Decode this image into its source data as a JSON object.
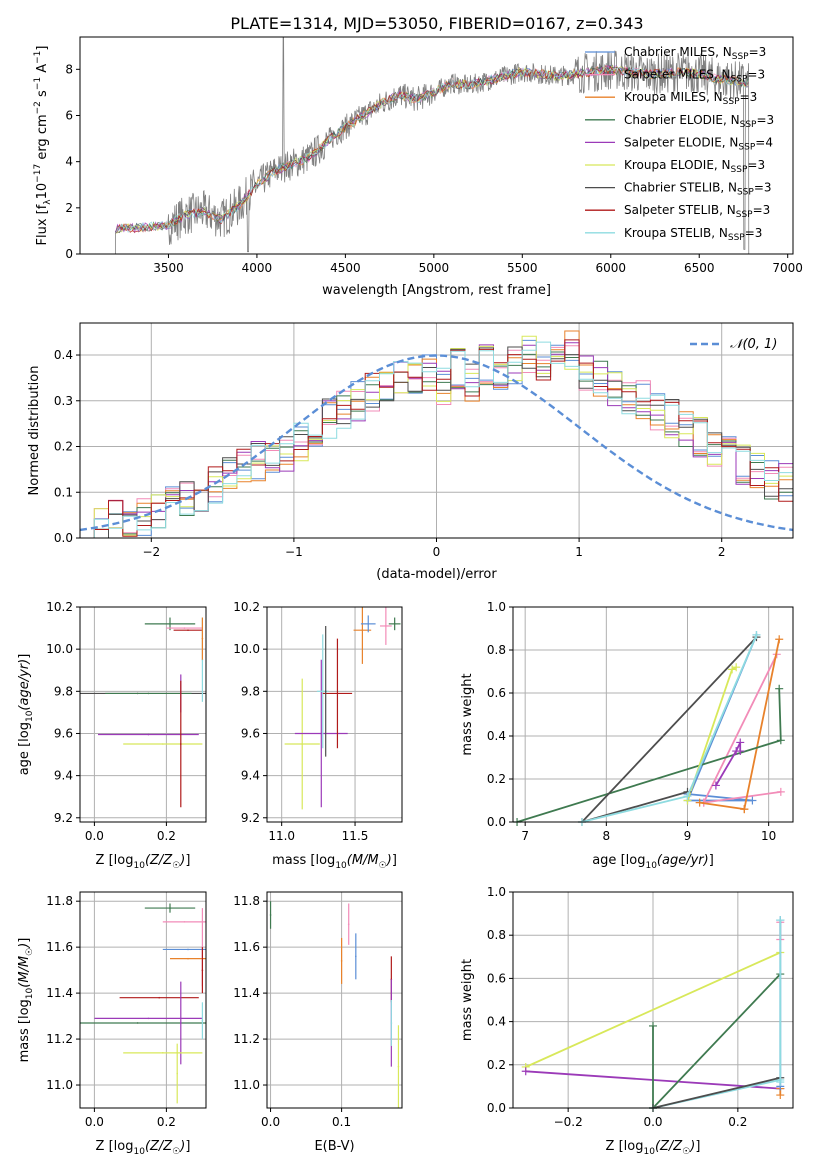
{
  "figure_title": "PLATE=1314, MJD=53050, FIBERID=0167, z=0.343",
  "palette": {
    "chabrier_miles": "#5b8ed6",
    "salpeter_miles": "#f28cb8",
    "kroupa_miles": "#e8822b",
    "chabrier_elodie": "#3f7a50",
    "salpeter_elodie": "#9b3ab8",
    "kroupa_elodie": "#d8e85a",
    "chabrier_stelib": "#4d4d4d",
    "salpeter_stelib": "#b01a1a",
    "kroupa_stelib": "#8edbe0",
    "spectrum": "#808080",
    "gaussian": "#5b8ed6",
    "grid": "#b0b0b0"
  },
  "chart_data": [
    {
      "type": "line",
      "title": "PLATE=1314, MJD=53050, FIBERID=0167, z=0.343",
      "xlabel": "wavelength [Angstrom, rest frame]",
      "ylabel_parts": {
        "a": "Flux [f",
        "b": "λ",
        "c": "10",
        "d": "−17",
        "e": " erg cm",
        "f": "−2",
        "g": " s",
        "h": "−1",
        "i": " A",
        "j": "−1",
        "k": "]"
      },
      "xlim": [
        3000,
        7030
      ],
      "ylim": [
        0,
        9.4
      ],
      "xticks": [
        3500,
        4000,
        4500,
        5000,
        5500,
        6000,
        6500,
        7000
      ],
      "yticks": [
        0,
        2,
        4,
        6,
        8
      ],
      "grid": false,
      "legend_position": "top-right",
      "legend": [
        {
          "label": "Chabrier MILES, N",
          "sub": "SSP",
          "tail": "=3"
        },
        {
          "label": "Salpeter MILES, N",
          "sub": "SSP",
          "tail": "=3"
        },
        {
          "label": "Kroupa MILES, N",
          "sub": "SSP",
          "tail": "=3"
        },
        {
          "label": "Chabrier ELODIE, N",
          "sub": "SSP",
          "tail": "=3"
        },
        {
          "label": "Salpeter ELODIE, N",
          "sub": "SSP",
          "tail": "=4"
        },
        {
          "label": "Kroupa ELODIE, N",
          "sub": "SSP",
          "tail": "=3"
        },
        {
          "label": "Chabrier STELIB, N",
          "sub": "SSP",
          "tail": "=3"
        },
        {
          "label": "Salpeter STELIB, N",
          "sub": "SSP",
          "tail": "=3"
        },
        {
          "label": "Kroupa STELIB, N",
          "sub": "SSP",
          "tail": "=3"
        }
      ],
      "spectrum_continuum": {
        "x": [
          3200,
          3350,
          3500,
          3600,
          3700,
          3800,
          3900,
          4000,
          4100,
          4200,
          4300,
          4400,
          4500,
          4600,
          4700,
          4800,
          4900,
          5000,
          5100,
          5200,
          5300,
          5400,
          5500,
          5600,
          5700,
          5800,
          5900,
          6000,
          6100,
          6200,
          6300,
          6400,
          6500,
          6600,
          6700,
          6780
        ],
        "y": [
          1.1,
          1.15,
          1.25,
          1.7,
          1.85,
          1.5,
          2.1,
          3.0,
          3.6,
          3.9,
          4.2,
          4.9,
          5.5,
          6.0,
          6.5,
          6.9,
          6.7,
          7.0,
          7.4,
          7.3,
          7.5,
          7.7,
          7.9,
          7.8,
          7.7,
          7.8,
          7.9,
          8.0,
          7.9,
          7.8,
          7.8,
          7.9,
          7.8,
          7.6,
          7.5,
          7.4
        ]
      }
    },
    {
      "type": "bar",
      "xlabel": "(data-model)/error",
      "ylabel": "Normed distribution",
      "xlim": [
        -2.5,
        2.5
      ],
      "ylim": [
        0,
        0.47
      ],
      "xticks": [
        -2,
        -1,
        0,
        1,
        2
      ],
      "yticks": [
        0.0,
        0.1,
        0.2,
        0.3,
        0.4
      ],
      "grid": true,
      "legend_position": "top-right",
      "legend_label": "𝒩(0, 1)",
      "bin_width": 0.1,
      "bin_start": -2.5,
      "histogram_approx": [
        0.03,
        0.03,
        0.04,
        0.045,
        0.05,
        0.06,
        0.07,
        0.08,
        0.09,
        0.12,
        0.14,
        0.16,
        0.17,
        0.18,
        0.19,
        0.21,
        0.23,
        0.26,
        0.28,
        0.3,
        0.32,
        0.33,
        0.35,
        0.34,
        0.36,
        0.33,
        0.37,
        0.34,
        0.38,
        0.36,
        0.38,
        0.4,
        0.39,
        0.38,
        0.41,
        0.36,
        0.35,
        0.33,
        0.31,
        0.3,
        0.28,
        0.26,
        0.24,
        0.22,
        0.2,
        0.18,
        0.16,
        0.14,
        0.13,
        0.12,
        0.1,
        0.09,
        0.08,
        0.07,
        0.06,
        0.055,
        0.05,
        0.045,
        0.04,
        0.035
      ]
    },
    {
      "type": "scatter",
      "xlabel": "Z [log10(Z/Z☉)]",
      "ylabel": "age  [log10(age/yr)]",
      "xlim": [
        -0.04,
        0.31
      ],
      "ylim": [
        9.18,
        10.2
      ],
      "xticks": [
        0.0,
        0.2
      ],
      "yticks": [
        9.2,
        9.4,
        9.6,
        9.8,
        10.0,
        10.2
      ],
      "grid": true,
      "points": [
        {
          "x": 0.12,
          "y": 9.79,
          "xerr": 0.19,
          "yerr": 0.0,
          "color": "chabrier_stelib"
        },
        {
          "x": 0.15,
          "y": 9.79,
          "xerr": 0.12,
          "yerr": 0.0,
          "color": "chabrier_elodie"
        },
        {
          "x": 0.24,
          "y": 9.79,
          "xerr": 0.0,
          "yerr": 0.09,
          "color": "salpeter_elodie"
        },
        {
          "x": 0.15,
          "y": 9.595,
          "xerr": 0.14,
          "yerr": 0.0,
          "color": "salpeter_elodie"
        },
        {
          "x": 0.19,
          "y": 9.55,
          "xerr": 0.11,
          "yerr": 0.0,
          "color": "kroupa_elodie"
        },
        {
          "x": 0.24,
          "y": 9.55,
          "xerr": 0.0,
          "yerr": 0.3,
          "color": "salpeter_stelib"
        },
        {
          "x": 0.21,
          "y": 10.12,
          "xerr": 0.07,
          "yerr": 0.03,
          "color": "chabrier_elodie"
        },
        {
          "x": 0.26,
          "y": 10.09,
          "xerr": 0.04,
          "yerr": 0.0,
          "color": "salpeter_stelib"
        },
        {
          "x": 0.25,
          "y": 10.1,
          "xerr": 0.05,
          "yerr": 0.0,
          "color": "salpeter_miles"
        },
        {
          "x": 0.3,
          "y": 9.95,
          "xerr": 0.0,
          "yerr": 0.2,
          "color": "kroupa_stelib"
        },
        {
          "x": 0.3,
          "y": 10.05,
          "xerr": 0.0,
          "yerr": 0.1,
          "color": "kroupa_miles"
        }
      ]
    },
    {
      "type": "scatter",
      "xlabel": "mass [log10(M/M☉)]",
      "xlim": [
        10.9,
        11.82
      ],
      "ylim": [
        9.18,
        10.2
      ],
      "xticks": [
        11.0,
        11.5
      ],
      "yticks": [
        9.2,
        9.4,
        9.6,
        9.8,
        10.0,
        10.2
      ],
      "grid": true,
      "points": [
        {
          "x": 11.14,
          "y": 9.55,
          "xerr": 0.12,
          "yerr": 0.31,
          "color": "kroupa_elodie"
        },
        {
          "x": 11.27,
          "y": 9.6,
          "xerr": 0.18,
          "yerr": 0.35,
          "color": "salpeter_elodie"
        },
        {
          "x": 11.28,
          "y": 9.8,
          "xerr": 0.04,
          "yerr": 0.27,
          "color": "kroupa_stelib"
        },
        {
          "x": 11.38,
          "y": 9.79,
          "xerr": 0.1,
          "yerr": 0.26,
          "color": "salpeter_stelib"
        },
        {
          "x": 11.3,
          "y": 9.8,
          "xerr": 0.0,
          "yerr": 0.31,
          "color": "chabrier_stelib"
        },
        {
          "x": 11.55,
          "y": 10.09,
          "xerr": 0.06,
          "yerr": 0.16,
          "color": "kroupa_miles"
        },
        {
          "x": 11.59,
          "y": 10.12,
          "xerr": 0.05,
          "yerr": 0.04,
          "color": "chabrier_miles"
        },
        {
          "x": 11.71,
          "y": 10.11,
          "xerr": 0.04,
          "yerr": 0.09,
          "color": "salpeter_miles"
        },
        {
          "x": 11.77,
          "y": 10.12,
          "xerr": 0.04,
          "yerr": 0.03,
          "color": "chabrier_elodie"
        }
      ]
    },
    {
      "type": "line",
      "xlabel": "age  [log10(age/yr)]",
      "ylabel": "mass weight",
      "xlim": [
        6.85,
        10.3
      ],
      "ylim": [
        0,
        1.0
      ],
      "xticks": [
        7,
        8,
        9,
        10
      ],
      "yticks": [
        0.0,
        0.2,
        0.4,
        0.6,
        0.8,
        1.0
      ],
      "grid": true,
      "series": [
        {
          "color": "chabrier_miles",
          "x": [
            9.0,
            9.8,
            9.0,
            9.85
          ],
          "y": [
            0.13,
            0.1,
            0.1,
            0.87
          ]
        },
        {
          "color": "salpeter_miles",
          "x": [
            9.2,
            10.15,
            9.2,
            10.1
          ],
          "y": [
            0.09,
            0.14,
            0.09,
            0.78
          ]
        },
        {
          "color": "kroupa_miles",
          "x": [
            9.7,
            10.13,
            9.7,
            9.15
          ],
          "y": [
            0.06,
            0.85,
            0.06,
            0.09
          ]
        },
        {
          "color": "chabrier_elodie",
          "x": [
            6.9,
            10.15,
            10.13
          ],
          "y": [
            0.0,
            0.38,
            0.62
          ]
        },
        {
          "color": "salpeter_elodie",
          "x": [
            9.35,
            9.6,
            9.65,
            9.65
          ],
          "y": [
            0.17,
            0.33,
            0.37,
            0.33
          ]
        },
        {
          "color": "kroupa_elodie",
          "x": [
            9.0,
            9.55,
            9.6
          ],
          "y": [
            0.1,
            0.71,
            0.72
          ]
        },
        {
          "color": "chabrier_stelib",
          "x": [
            9.0,
            7.7,
            9.85
          ],
          "y": [
            0.14,
            0.0,
            0.86
          ]
        },
        {
          "color": "kroupa_stelib",
          "x": [
            7.7,
            9.0,
            9.85
          ],
          "y": [
            0.0,
            0.12,
            0.87
          ]
        }
      ]
    },
    {
      "type": "scatter",
      "xlabel": "Z [log10(Z/Z☉)]",
      "ylabel": "mass [log10(M/M☉)]",
      "xlim": [
        -0.04,
        0.31
      ],
      "ylim": [
        10.9,
        11.84
      ],
      "xticks": [
        0.0,
        0.2
      ],
      "yticks": [
        11.0,
        11.2,
        11.4,
        11.6,
        11.8
      ],
      "grid": true,
      "points": [
        {
          "x": 0.21,
          "y": 11.77,
          "xerr": 0.07,
          "yerr": 0.02,
          "color": "chabrier_elodie"
        },
        {
          "x": 0.25,
          "y": 11.71,
          "xerr": 0.06,
          "yerr": 0.0,
          "color": "salpeter_miles"
        },
        {
          "x": 0.26,
          "y": 11.59,
          "xerr": 0.07,
          "yerr": 0.0,
          "color": "chabrier_miles"
        },
        {
          "x": 0.26,
          "y": 11.55,
          "xerr": 0.05,
          "yerr": 0.0,
          "color": "kroupa_miles"
        },
        {
          "x": 0.3,
          "y": 11.6,
          "xerr": 0.0,
          "yerr": 0.17,
          "color": "salpeter_miles"
        },
        {
          "x": 0.3,
          "y": 11.5,
          "xerr": 0.0,
          "yerr": 0.1,
          "color": "salpeter_stelib"
        },
        {
          "x": 0.18,
          "y": 11.38,
          "xerr": 0.11,
          "yerr": 0.0,
          "color": "salpeter_stelib"
        },
        {
          "x": 0.15,
          "y": 11.29,
          "xerr": 0.15,
          "yerr": 0.0,
          "color": "salpeter_elodie"
        },
        {
          "x": 0.12,
          "y": 11.27,
          "xerr": 0.19,
          "yerr": 0.0,
          "color": "chabrier_elodie"
        },
        {
          "x": 0.24,
          "y": 11.27,
          "xerr": 0.0,
          "yerr": 0.18,
          "color": "salpeter_elodie"
        },
        {
          "x": 0.19,
          "y": 11.14,
          "xerr": 0.11,
          "yerr": 0.0,
          "color": "kroupa_elodie"
        },
        {
          "x": 0.23,
          "y": 11.05,
          "xerr": 0.0,
          "yerr": 0.13,
          "color": "kroupa_elodie"
        },
        {
          "x": 0.3,
          "y": 11.28,
          "xerr": 0.0,
          "yerr": 0.08,
          "color": "kroupa_stelib"
        }
      ]
    },
    {
      "type": "scatter",
      "xlabel": "E(B-V)",
      "xlim": [
        -0.005,
        0.185
      ],
      "ylim": [
        10.9,
        11.84
      ],
      "xticks": [
        0.0,
        0.1
      ],
      "yticks": [
        11.0,
        11.2,
        11.4,
        11.6,
        11.8
      ],
      "grid": true,
      "points": [
        {
          "x": 0.0,
          "y": 11.74,
          "xerr": 0.0,
          "yerr": 0.06,
          "color": "chabrier_elodie"
        },
        {
          "x": 0.1,
          "y": 11.54,
          "xerr": 0.0,
          "yerr": 0.1,
          "color": "kroupa_miles"
        },
        {
          "x": 0.11,
          "y": 11.7,
          "xerr": 0.0,
          "yerr": 0.09,
          "color": "salpeter_miles"
        },
        {
          "x": 0.12,
          "y": 11.56,
          "xerr": 0.0,
          "yerr": 0.1,
          "color": "chabrier_miles"
        },
        {
          "x": 0.17,
          "y": 11.46,
          "xerr": 0.0,
          "yerr": 0.1,
          "color": "salpeter_stelib"
        },
        {
          "x": 0.17,
          "y": 11.27,
          "xerr": 0.0,
          "yerr": 0.19,
          "color": "salpeter_elodie"
        },
        {
          "x": 0.17,
          "y": 11.27,
          "xerr": 0.0,
          "yerr": 0.1,
          "color": "kroupa_stelib"
        },
        {
          "x": 0.18,
          "y": 11.08,
          "xerr": 0.0,
          "yerr": 0.18,
          "color": "kroupa_elodie"
        }
      ]
    },
    {
      "type": "line",
      "xlabel": "Z [log10(Z/Z☉)]",
      "ylabel": "mass weight",
      "xlim": [
        -0.33,
        0.33
      ],
      "ylim": [
        0,
        1.0
      ],
      "xticks": [
        -0.2,
        0.0,
        0.2
      ],
      "yticks": [
        0.0,
        0.2,
        0.4,
        0.6,
        0.8,
        1.0
      ],
      "grid": true,
      "series": [
        {
          "color": "kroupa_elodie",
          "x": [
            -0.3,
            0.3
          ],
          "y": [
            0.19,
            0.72
          ]
        },
        {
          "color": "salpeter_elodie",
          "x": [
            -0.3,
            0.3
          ],
          "y": [
            0.17,
            0.09
          ]
        },
        {
          "color": "chabrier_elodie",
          "x": [
            0.0,
            0.3,
            0.0,
            0.0
          ],
          "y": [
            0.0,
            0.62,
            0.0,
            0.38
          ]
        },
        {
          "color": "kroupa_stelib",
          "x": [
            0.0,
            0.3
          ],
          "y": [
            0.0,
            0.13
          ]
        },
        {
          "color": "chabrier_stelib",
          "x": [
            0.0,
            0.3
          ],
          "y": [
            0.0,
            0.14
          ]
        },
        {
          "color": "salpeter_miles",
          "x": [
            0.3,
            0.3
          ],
          "y": [
            0.78,
            0.86
          ]
        },
        {
          "color": "kroupa_miles",
          "x": [
            0.3,
            0.3
          ],
          "y": [
            0.06,
            0.09
          ]
        },
        {
          "color": "chabrier_miles",
          "x": [
            0.3,
            0.3
          ],
          "y": [
            0.1,
            0.87
          ]
        },
        {
          "color": "kroupa_stelib",
          "x": [
            0.3,
            0.3
          ],
          "y": [
            0.12,
            0.87
          ]
        }
      ]
    }
  ]
}
